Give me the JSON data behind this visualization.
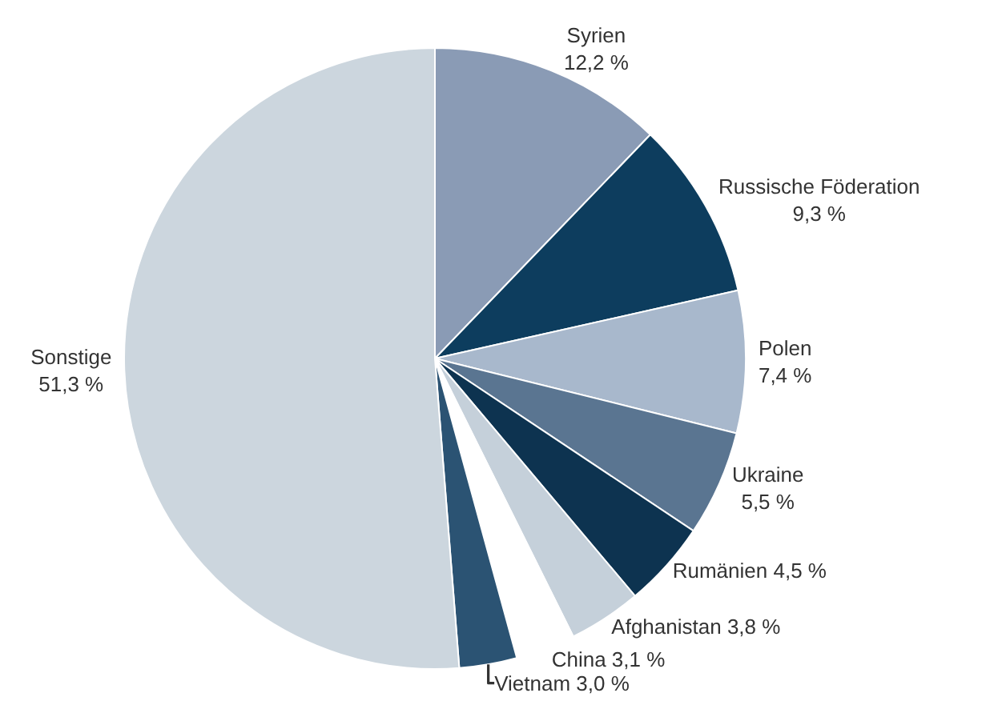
{
  "chart_data": {
    "type": "pie",
    "categories": [
      "Syrien",
      "Russische Föderation",
      "Polen",
      "Ukraine",
      "Rumänien",
      "Afghanistan",
      "China",
      "Vietnam",
      "Sonstige"
    ],
    "values": [
      12.2,
      9.3,
      7.4,
      5.5,
      4.5,
      3.8,
      3.1,
      3.0,
      51.3
    ],
    "value_labels": [
      "12,2 %",
      "9,3 %",
      "7,4 %",
      "5,5 %",
      "4,5 %",
      "3,8 %",
      "3,1 %",
      "3,0 %",
      "51,3 %"
    ],
    "colors": [
      "#8a9bb5",
      "#0d3d5e",
      "#a8b8cc",
      "#5a7591",
      "#0d3350",
      "#c5d0da",
      "#ffffff",
      "#2b5373",
      "#ccd6de"
    ],
    "legend": false
  }
}
